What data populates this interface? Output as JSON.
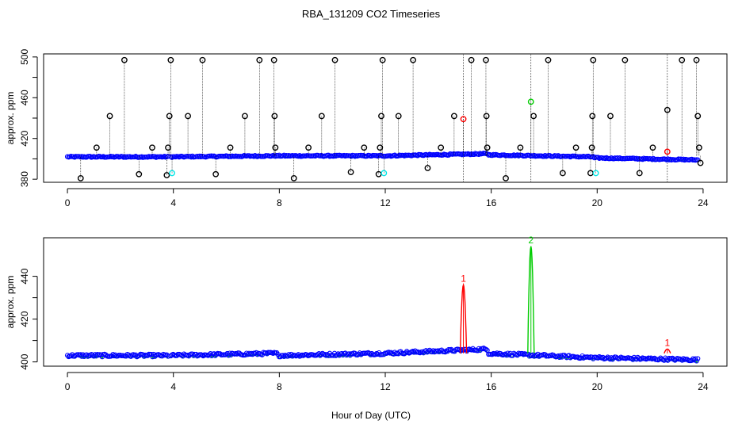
{
  "title": "RBA_131209  CO2 Timeseries",
  "xlabel": "Hour of Day (UTC)",
  "colors": {
    "outlier": "#000000",
    "baseline": "#0000ff",
    "fill": "#00cc00",
    "spike_red": "#ff0000",
    "spike_green": "#00cc00",
    "cyan": "#00e5e5",
    "axis": "#000000"
  },
  "chart_data": [
    {
      "type": "scatter",
      "panel": "top",
      "ylabel": "approx. ppm",
      "xlim": [
        -0.9,
        24.9
      ],
      "ylim": [
        377,
        503
      ],
      "xticks": [
        0,
        4,
        8,
        12,
        16,
        20,
        24
      ],
      "yticks": [
        380,
        420,
        460,
        500
      ],
      "ytick_labels": [
        "380",
        "420",
        "460",
        "500"
      ],
      "baseline_segments": [
        {
          "x": [
            0.0,
            3.8
          ],
          "y": [
            402,
            402
          ]
        },
        {
          "x": [
            3.9,
            7.9
          ],
          "y": [
            402,
            403
          ]
        },
        {
          "x": [
            7.95,
            11.9
          ],
          "y": [
            403,
            403
          ]
        },
        {
          "x": [
            11.95,
            15.85
          ],
          "y": [
            403,
            405
          ]
        },
        {
          "x": [
            15.9,
            19.85
          ],
          "y": [
            404,
            402
          ]
        },
        {
          "x": [
            19.9,
            23.8
          ],
          "y": [
            401,
            399
          ]
        }
      ],
      "outliers_black": [
        {
          "x": 0.5,
          "y": 381
        },
        {
          "x": 1.1,
          "y": 411
        },
        {
          "x": 1.6,
          "y": 442
        },
        {
          "x": 2.15,
          "y": 497
        },
        {
          "x": 2.7,
          "y": 385
        },
        {
          "x": 3.2,
          "y": 411
        },
        {
          "x": 3.75,
          "y": 384
        },
        {
          "x": 3.8,
          "y": 411
        },
        {
          "x": 3.85,
          "y": 442
        },
        {
          "x": 3.9,
          "y": 497
        },
        {
          "x": 4.55,
          "y": 442
        },
        {
          "x": 5.1,
          "y": 497
        },
        {
          "x": 5.6,
          "y": 385
        },
        {
          "x": 6.15,
          "y": 411
        },
        {
          "x": 6.7,
          "y": 442
        },
        {
          "x": 7.25,
          "y": 497
        },
        {
          "x": 7.8,
          "y": 497
        },
        {
          "x": 7.82,
          "y": 442
        },
        {
          "x": 7.85,
          "y": 411
        },
        {
          "x": 8.55,
          "y": 381
        },
        {
          "x": 9.1,
          "y": 411
        },
        {
          "x": 9.6,
          "y": 442
        },
        {
          "x": 10.1,
          "y": 497
        },
        {
          "x": 10.7,
          "y": 387
        },
        {
          "x": 11.2,
          "y": 411
        },
        {
          "x": 11.75,
          "y": 385
        },
        {
          "x": 11.8,
          "y": 411
        },
        {
          "x": 11.85,
          "y": 442
        },
        {
          "x": 11.9,
          "y": 497
        },
        {
          "x": 12.5,
          "y": 442
        },
        {
          "x": 13.05,
          "y": 497
        },
        {
          "x": 13.6,
          "y": 391
        },
        {
          "x": 14.1,
          "y": 411
        },
        {
          "x": 14.6,
          "y": 442
        },
        {
          "x": 15.25,
          "y": 497
        },
        {
          "x": 15.8,
          "y": 497
        },
        {
          "x": 15.82,
          "y": 442
        },
        {
          "x": 15.85,
          "y": 411
        },
        {
          "x": 16.55,
          "y": 381
        },
        {
          "x": 17.1,
          "y": 411
        },
        {
          "x": 17.6,
          "y": 442
        },
        {
          "x": 18.15,
          "y": 497
        },
        {
          "x": 18.7,
          "y": 386
        },
        {
          "x": 19.2,
          "y": 411
        },
        {
          "x": 19.75,
          "y": 386
        },
        {
          "x": 19.8,
          "y": 411
        },
        {
          "x": 19.82,
          "y": 442
        },
        {
          "x": 19.85,
          "y": 497
        },
        {
          "x": 20.5,
          "y": 442
        },
        {
          "x": 21.05,
          "y": 497
        },
        {
          "x": 21.6,
          "y": 386
        },
        {
          "x": 22.1,
          "y": 411
        },
        {
          "x": 22.65,
          "y": 448
        },
        {
          "x": 23.2,
          "y": 497
        },
        {
          "x": 23.75,
          "y": 497
        },
        {
          "x": 23.8,
          "y": 442
        },
        {
          "x": 23.85,
          "y": 411
        },
        {
          "x": 23.9,
          "y": 396
        }
      ],
      "outliers_cyan": [
        {
          "x": 3.95,
          "y": 386
        },
        {
          "x": 11.95,
          "y": 386
        },
        {
          "x": 19.95,
          "y": 386
        }
      ],
      "outliers_red": [
        {
          "x": 14.95,
          "y": 439
        },
        {
          "x": 22.65,
          "y": 407
        }
      ],
      "outliers_green": [
        {
          "x": 17.5,
          "y": 456
        }
      ],
      "long_lines_x": [
        14.95,
        17.5,
        22.65
      ]
    },
    {
      "type": "line",
      "panel": "bottom",
      "ylabel": "approx. ppm",
      "xlim": [
        -0.9,
        24.9
      ],
      "ylim": [
        398,
        458
      ],
      "xticks": [
        0,
        4,
        8,
        12,
        16,
        20,
        24
      ],
      "yticks": [
        400,
        420,
        440
      ],
      "ytick_labels": [
        "400",
        "420",
        "440"
      ],
      "baseline_segments": [
        {
          "x": [
            0.0,
            3.8
          ],
          "y": [
            403,
            403
          ]
        },
        {
          "x": [
            3.9,
            7.9
          ],
          "y": [
            403,
            404
          ]
        },
        {
          "x": [
            7.95,
            11.9
          ],
          "y": [
            403,
            404
          ]
        },
        {
          "x": [
            11.95,
            15.85
          ],
          "y": [
            404,
            406
          ]
        },
        {
          "x": [
            15.9,
            19.85
          ],
          "y": [
            404,
            402
          ]
        },
        {
          "x": [
            19.9,
            23.8
          ],
          "y": [
            402,
            401
          ]
        }
      ],
      "peaks": [
        {
          "x": 14.95,
          "y": 436,
          "label": "1",
          "color": "#ff0000"
        },
        {
          "x": 17.5,
          "y": 454,
          "label": "2",
          "color": "#00cc00"
        },
        {
          "x": 22.65,
          "y": 406,
          "label": "1",
          "color": "#ff0000"
        }
      ]
    }
  ]
}
